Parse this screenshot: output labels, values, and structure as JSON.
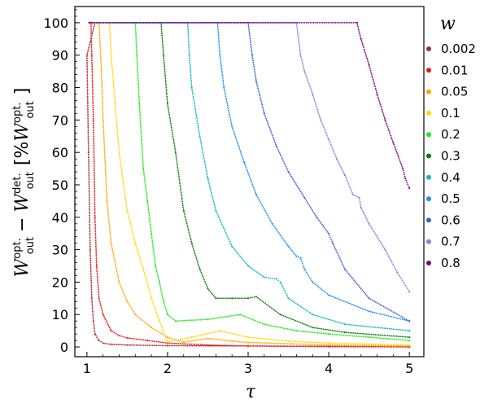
{
  "chart_data": {
    "type": "scatter",
    "title": "",
    "xlabel": "τ",
    "ylabel": {
      "W1": "W",
      "sup1": "opt.",
      "sub1": "out",
      "minus": "−",
      "W2": "W",
      "sup2": "det.",
      "sub2": "out",
      "bracket_open": "[%",
      "W3": "W",
      "sup3": "opt.",
      "sub3": "out",
      "bracket_close": "]"
    },
    "xlim": [
      0.85,
      5.18
    ],
    "ylim": [
      -3,
      105
    ],
    "xticks": [
      1,
      2,
      3,
      4,
      5
    ],
    "xtick_labels": [
      "1",
      "2",
      "3",
      "4",
      "5"
    ],
    "yticks": [
      0,
      10,
      20,
      30,
      40,
      50,
      60,
      70,
      80,
      90,
      100
    ],
    "ytick_labels": [
      "0",
      "10",
      "20",
      "30",
      "40",
      "50",
      "60",
      "70",
      "80",
      "90",
      "100"
    ],
    "grid": false,
    "legend": {
      "title": "w",
      "placement": "right, outside the axes"
    },
    "series": [
      {
        "name": "0.002",
        "color": "#a52a2a",
        "points": [
          [
            1.03,
            100
          ],
          [
            1.07,
            100
          ],
          [
            1.1,
            100
          ],
          [
            1.0,
            90
          ],
          [
            1.02,
            60
          ],
          [
            1.04,
            30
          ],
          [
            1.06,
            15
          ],
          [
            1.08,
            8
          ],
          [
            1.1,
            4
          ],
          [
            1.15,
            2
          ],
          [
            1.2,
            1.2
          ],
          [
            1.3,
            0.8
          ],
          [
            1.5,
            0.6
          ],
          [
            2.0,
            0.4
          ],
          [
            3.0,
            0.3
          ],
          [
            4.0,
            0.2
          ],
          [
            5.0,
            0.1
          ]
        ]
      },
      {
        "name": "0.01",
        "color": "#e41a1c",
        "points": [
          [
            1.03,
            100
          ],
          [
            1.05,
            100
          ],
          [
            1.06,
            90
          ],
          [
            1.08,
            70
          ],
          [
            1.1,
            40
          ],
          [
            1.12,
            25
          ],
          [
            1.15,
            15
          ],
          [
            1.2,
            10
          ],
          [
            1.3,
            5
          ],
          [
            1.4,
            3.5
          ],
          [
            1.5,
            2.8
          ],
          [
            1.75,
            2
          ],
          [
            2.0,
            1.2
          ],
          [
            2.5,
            0.6
          ],
          [
            3.0,
            0.3
          ],
          [
            4.0,
            0.1
          ],
          [
            5.0,
            0
          ]
        ]
      },
      {
        "name": "0.05",
        "color": "#ffa500",
        "points": [
          [
            1.03,
            100
          ],
          [
            1.15,
            100
          ],
          [
            1.18,
            85
          ],
          [
            1.2,
            70
          ],
          [
            1.25,
            45
          ],
          [
            1.3,
            32
          ],
          [
            1.4,
            20
          ],
          [
            1.5,
            14
          ],
          [
            1.6,
            10
          ],
          [
            1.8,
            6
          ],
          [
            2.0,
            3
          ],
          [
            2.2,
            1.5
          ],
          [
            2.5,
            2.6
          ],
          [
            2.8,
            1.8
          ],
          [
            3.0,
            1.4
          ],
          [
            4.0,
            0.6
          ],
          [
            5.0,
            0.3
          ]
        ]
      },
      {
        "name": "0.1",
        "color": "#ffd700",
        "points": [
          [
            1.03,
            100
          ],
          [
            1.28,
            100
          ],
          [
            1.3,
            90
          ],
          [
            1.35,
            75
          ],
          [
            1.4,
            60
          ],
          [
            1.5,
            42
          ],
          [
            1.6,
            32
          ],
          [
            1.7,
            24
          ],
          [
            1.8,
            15
          ],
          [
            1.9,
            8
          ],
          [
            2.0,
            1.5
          ],
          [
            2.3,
            3
          ],
          [
            2.65,
            5
          ],
          [
            3.0,
            3
          ],
          [
            3.5,
            1.8
          ],
          [
            4.0,
            1.2
          ],
          [
            5.0,
            0.6
          ]
        ]
      },
      {
        "name": "0.2",
        "color": "#1ee81e",
        "points": [
          [
            1.03,
            100
          ],
          [
            1.6,
            100
          ],
          [
            1.62,
            90
          ],
          [
            1.65,
            75
          ],
          [
            1.7,
            55
          ],
          [
            1.75,
            45
          ],
          [
            1.8,
            35
          ],
          [
            1.85,
            25
          ],
          [
            1.9,
            20
          ],
          [
            1.95,
            14
          ],
          [
            2.0,
            10
          ],
          [
            2.1,
            8
          ],
          [
            2.5,
            8.5
          ],
          [
            2.9,
            10
          ],
          [
            3.2,
            7
          ],
          [
            3.6,
            5
          ],
          [
            4.0,
            4
          ],
          [
            4.5,
            3
          ],
          [
            5.0,
            2
          ]
        ]
      },
      {
        "name": "0.3",
        "color": "#0b7a0b",
        "points": [
          [
            1.03,
            100
          ],
          [
            1.92,
            100
          ],
          [
            1.95,
            90
          ],
          [
            2.0,
            75
          ],
          [
            2.1,
            60
          ],
          [
            2.2,
            42
          ],
          [
            2.3,
            32
          ],
          [
            2.4,
            24
          ],
          [
            2.5,
            18
          ],
          [
            2.6,
            15
          ],
          [
            2.8,
            15
          ],
          [
            3.0,
            15
          ],
          [
            3.1,
            15.5
          ],
          [
            3.4,
            10
          ],
          [
            3.8,
            6
          ],
          [
            4.2,
            4.5
          ],
          [
            5.0,
            3
          ]
        ]
      },
      {
        "name": "0.4",
        "color": "#12b8b8",
        "points": [
          [
            1.03,
            100
          ],
          [
            2.25,
            100
          ],
          [
            2.27,
            90
          ],
          [
            2.3,
            80
          ],
          [
            2.4,
            65
          ],
          [
            2.5,
            52
          ],
          [
            2.6,
            42
          ],
          [
            2.8,
            31
          ],
          [
            3.0,
            25
          ],
          [
            3.2,
            21.5
          ],
          [
            3.35,
            21
          ],
          [
            3.4,
            20
          ],
          [
            3.5,
            15
          ],
          [
            3.8,
            10
          ],
          [
            4.2,
            7
          ],
          [
            5.0,
            5
          ]
        ]
      },
      {
        "name": "0.5",
        "color": "#1e8ff0",
        "points": [
          [
            1.03,
            100
          ],
          [
            2.62,
            100
          ],
          [
            2.65,
            90
          ],
          [
            2.7,
            80
          ],
          [
            2.8,
            68
          ],
          [
            2.95,
            57
          ],
          [
            3.1,
            47
          ],
          [
            3.3,
            38
          ],
          [
            3.5,
            31
          ],
          [
            3.6,
            28
          ],
          [
            3.65,
            27.5
          ],
          [
            3.7,
            24
          ],
          [
            3.8,
            20
          ],
          [
            4.0,
            16
          ],
          [
            4.5,
            11
          ],
          [
            5.0,
            8
          ]
        ]
      },
      {
        "name": "0.6",
        "color": "#3a5fcd",
        "points": [
          [
            1.03,
            100
          ],
          [
            3.0,
            100
          ],
          [
            3.05,
            90
          ],
          [
            3.1,
            82
          ],
          [
            3.2,
            72
          ],
          [
            3.35,
            62
          ],
          [
            3.5,
            54
          ],
          [
            3.7,
            46
          ],
          [
            3.85,
            40
          ],
          [
            4.0,
            35
          ],
          [
            4.05,
            32
          ],
          [
            4.2,
            24
          ],
          [
            4.5,
            15
          ],
          [
            5.0,
            8
          ]
        ]
      },
      {
        "name": "0.7",
        "color": "#8a7fe0",
        "points": [
          [
            1.03,
            100
          ],
          [
            3.6,
            100
          ],
          [
            3.65,
            90
          ],
          [
            3.7,
            85
          ],
          [
            3.8,
            78
          ],
          [
            3.9,
            70
          ],
          [
            4.0,
            64
          ],
          [
            4.1,
            58
          ],
          [
            4.2,
            53
          ],
          [
            4.3,
            47
          ],
          [
            4.38,
            46
          ],
          [
            4.4,
            43
          ],
          [
            4.5,
            38
          ],
          [
            4.7,
            30
          ],
          [
            4.85,
            23
          ],
          [
            5.0,
            17
          ]
        ]
      },
      {
        "name": "0.8",
        "color": "#800080",
        "points": [
          [
            1.03,
            100
          ],
          [
            4.35,
            100
          ],
          [
            4.4,
            95
          ],
          [
            4.5,
            87
          ],
          [
            4.6,
            78
          ],
          [
            4.7,
            70
          ],
          [
            4.8,
            63
          ],
          [
            4.92,
            55
          ],
          [
            4.95,
            52
          ],
          [
            5.0,
            49
          ]
        ]
      }
    ]
  }
}
